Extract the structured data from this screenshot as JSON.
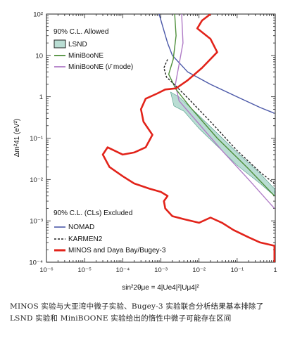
{
  "chart_data": {
    "type": "line",
    "x_scale": "log",
    "y_scale": "log",
    "xlim": [
      1e-06,
      1
    ],
    "ylim": [
      0.0001,
      100
    ],
    "x_tick_labels": [
      "10⁻⁶",
      "10⁻⁵",
      "10⁻⁴",
      "10⁻³",
      "10⁻²",
      "10⁻¹",
      "1"
    ],
    "y_tick_labels": [
      "10⁻⁴",
      "10⁻³",
      "10⁻²",
      "10⁻¹",
      "1",
      "10",
      "10²"
    ],
    "xlabel": "sin²2θμe = 4|Ue4|²|Uμ4|²",
    "ylabel": "Δm²41 (eV²)",
    "legend_allowed_title": "90% C.L. Allowed",
    "legend_excluded_title": "90% C.L. (CLs) Excluded",
    "colors": {
      "lsnd_fill": "#b9ddd3",
      "lsnd_stroke": "#4f9a87",
      "miniboone": "#4e8f3a",
      "miniboone_nubar": "#b07cc6",
      "nomad": "#4b58a8",
      "karmen2": "#222222",
      "minos": "#e2231a"
    },
    "series": [
      {
        "name": "LSND",
        "kind": "band",
        "upper": [
          [
            0.0018,
            1.3
          ],
          [
            0.003,
            1.0
          ],
          [
            0.01,
            0.35
          ],
          [
            0.1,
            0.045
          ],
          [
            0.4,
            0.014
          ],
          [
            0.95,
            0.006
          ]
        ],
        "lower": [
          [
            0.0022,
            0.6
          ],
          [
            0.004,
            0.45
          ],
          [
            0.01,
            0.17
          ],
          [
            0.1,
            0.022
          ],
          [
            0.4,
            0.008
          ],
          [
            0.95,
            0.004
          ]
        ]
      },
      {
        "name": "MiniBooNE",
        "kind": "line",
        "points": [
          [
            0.0023,
            100
          ],
          [
            0.0025,
            30
          ],
          [
            0.0021,
            8
          ],
          [
            0.0016,
            3.5
          ],
          [
            0.0025,
            1.5
          ],
          [
            0.006,
            0.55
          ],
          [
            0.03,
            0.1
          ],
          [
            0.2,
            0.018
          ],
          [
            0.95,
            0.004
          ]
        ]
      },
      {
        "name": "MiniBooNE (ν̄ mode)",
        "kind": "line",
        "points": [
          [
            0.0035,
            100
          ],
          [
            0.0038,
            20
          ],
          [
            0.003,
            6
          ],
          [
            0.0024,
            2
          ],
          [
            0.003,
            0.8
          ],
          [
            0.008,
            0.28
          ],
          [
            0.04,
            0.05
          ],
          [
            0.2,
            0.01
          ],
          [
            0.95,
            0.002
          ]
        ]
      },
      {
        "name": "NOMAD",
        "kind": "line",
        "points": [
          [
            0.0009,
            100
          ],
          [
            0.0012,
            40
          ],
          [
            0.0015,
            20
          ],
          [
            0.002,
            10
          ],
          [
            0.005,
            4
          ],
          [
            0.02,
            2
          ],
          [
            0.1,
            1
          ],
          [
            0.4,
            0.55
          ],
          [
            0.95,
            0.4
          ]
        ]
      },
      {
        "name": "KARMEN2",
        "kind": "line",
        "points": [
          [
            0.0015,
            8
          ],
          [
            0.0012,
            5
          ],
          [
            0.0014,
            3
          ],
          [
            0.0025,
            1.8
          ],
          [
            0.006,
            0.8
          ],
          [
            0.02,
            0.25
          ],
          [
            0.1,
            0.05
          ],
          [
            0.4,
            0.015
          ],
          [
            0.95,
            0.008
          ]
        ]
      },
      {
        "name": "MINOS and Daya Bay/Bugey-3",
        "kind": "line",
        "points": [
          [
            0.02,
            100
          ],
          [
            0.012,
            70
          ],
          [
            0.009,
            45
          ],
          [
            0.02,
            25
          ],
          [
            0.03,
            12
          ],
          [
            0.012,
            5
          ],
          [
            0.005,
            2.5
          ],
          [
            0.0025,
            1.6
          ],
          [
            0.0013,
            1.5
          ],
          [
            0.0008,
            1.2
          ],
          [
            0.0004,
            0.9
          ],
          [
            0.0003,
            0.5
          ],
          [
            0.00035,
            0.25
          ],
          [
            0.0006,
            0.12
          ],
          [
            0.0004,
            0.06
          ],
          [
            0.0002,
            0.045
          ],
          [
            0.0001,
            0.04
          ],
          [
            4e-05,
            0.06
          ],
          [
            3e-05,
            0.04
          ],
          [
            4.5e-05,
            0.02
          ],
          [
            0.0001,
            0.012
          ],
          [
            0.0002,
            0.008
          ],
          [
            0.0005,
            0.006
          ],
          [
            0.001,
            0.005
          ],
          [
            0.0015,
            0.004
          ],
          [
            0.0012,
            0.003
          ],
          [
            0.0013,
            0.002
          ],
          [
            0.002,
            0.0013
          ],
          [
            0.004,
            0.0011
          ],
          [
            0.01,
            0.0009
          ],
          [
            0.02,
            0.0012
          ],
          [
            0.04,
            0.0009
          ],
          [
            0.08,
            0.0006
          ],
          [
            0.2,
            0.0004
          ],
          [
            0.4,
            0.0003
          ],
          [
            0.95,
            0.00025
          ],
          [
            0.95,
            0.0001
          ]
        ]
      }
    ]
  },
  "legend": {
    "lsnd": "LSND",
    "miniboone": "MiniBooNE",
    "miniboone_nubar_pre": "MiniBooNE (",
    "miniboone_nubar_nu": "ν̄",
    "miniboone_nubar_post": " mode)",
    "nomad": "NOMAD",
    "karmen2": "KARMEN2",
    "minos": "MINOS and Daya Bay/Bugey-3"
  },
  "caption": "MINOS 实验与大亚湾中微子实验、Bugey-3 实验联合分析结果基本排除了 LSND 实验和 MiniBOONE 实验给出的惰性中微子可能存在区间"
}
